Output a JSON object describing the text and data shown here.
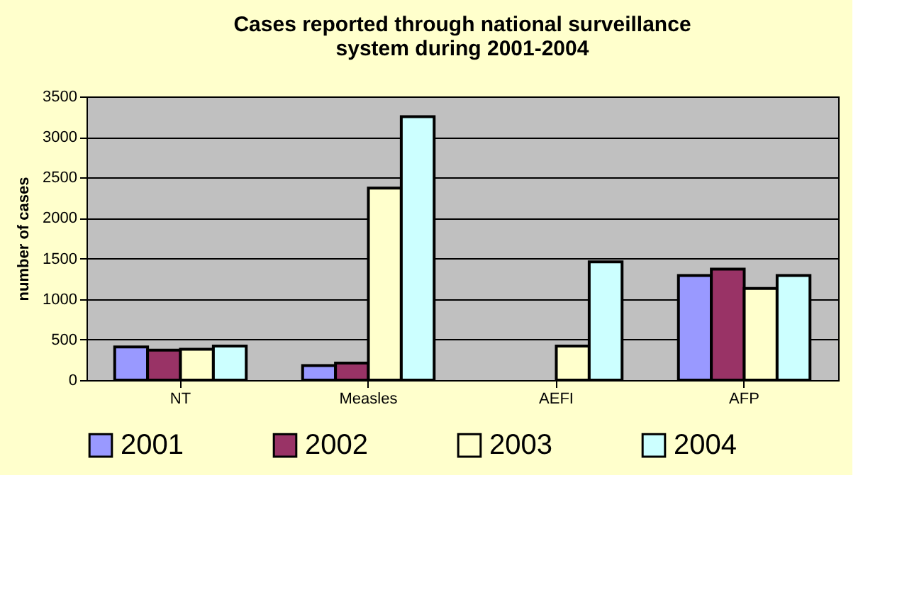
{
  "chart_data": {
    "type": "bar",
    "title": "Cases reported through national surveillance system during 2001-2004",
    "ylabel": "number of cases",
    "categories": [
      "NT",
      "Measles",
      "AEFI",
      "AFP"
    ],
    "series": [
      {
        "name": "2001",
        "color": "#9999ff",
        "values": [
          410,
          180,
          null,
          1290
        ]
      },
      {
        "name": "2002",
        "color": "#993366",
        "values": [
          370,
          210,
          null,
          1370
        ]
      },
      {
        "name": "2003",
        "color": "#ffffcc",
        "values": [
          380,
          2370,
          420,
          1130
        ]
      },
      {
        "name": "2004",
        "color": "#ccffff",
        "values": [
          420,
          3250,
          1460,
          1290
        ]
      }
    ],
    "ylim": [
      0,
      3500
    ],
    "yticks": [
      0,
      500,
      1000,
      1500,
      2000,
      2500,
      3000,
      3500
    ],
    "grid": "y",
    "legend": "bottom"
  }
}
